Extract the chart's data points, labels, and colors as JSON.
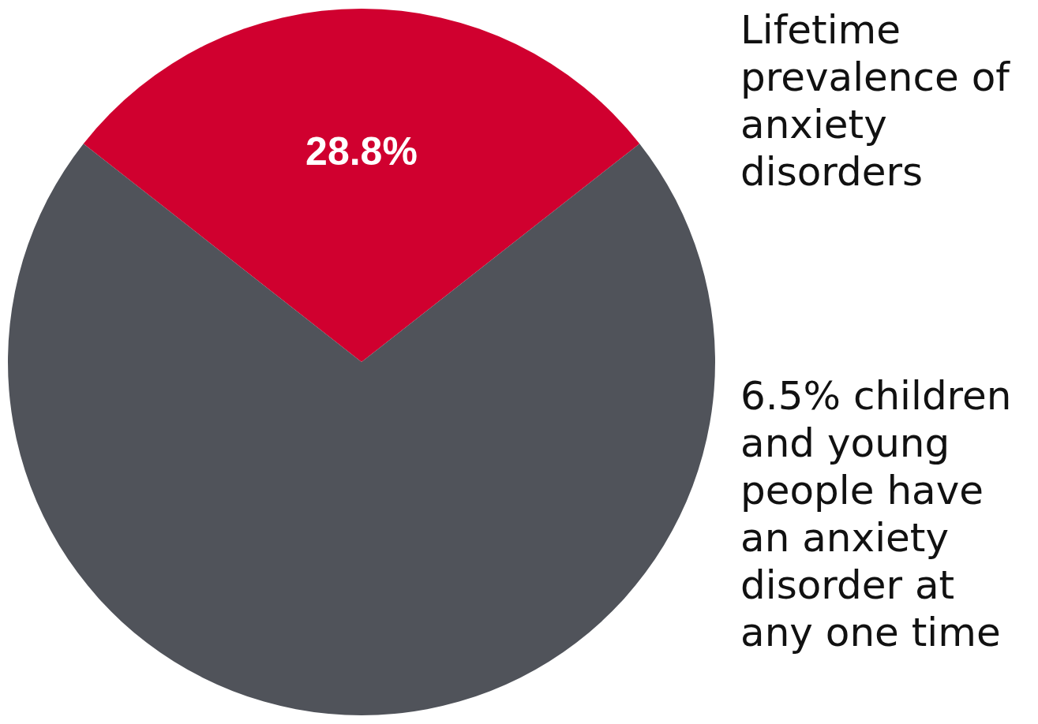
{
  "chart_data": {
    "type": "pie",
    "categories": [
      null,
      null
    ],
    "values": [
      28.8,
      71.2
    ],
    "colors": [
      "#d0002f",
      "#50535a"
    ],
    "value_labels": [
      "28.8%",
      null
    ],
    "annotations": [
      "Lifetime prevalence of anxiety disorders",
      "6.5% children and young people have an anxiety disorder at any one time"
    ]
  }
}
